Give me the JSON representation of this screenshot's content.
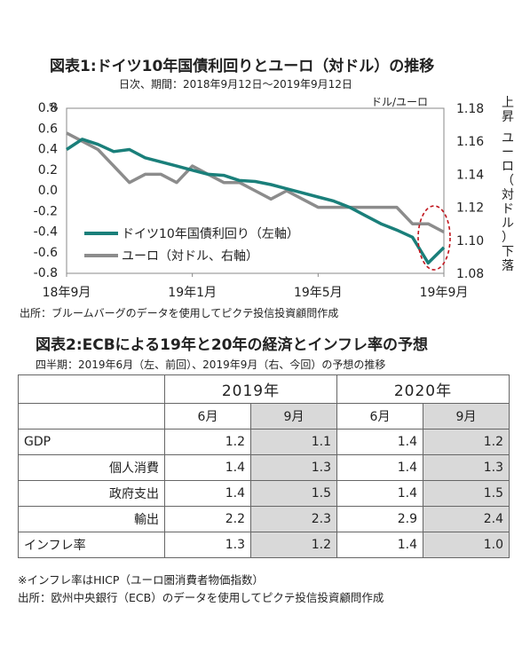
{
  "figure1": {
    "title": "図表1:ドイツ10年国債利回りとユーロ（対ドル）の推移",
    "subtitle": "日次、期間：2018年9月12日～2019年9月12日",
    "unit_left": "%",
    "unit_right": "ドル/ユーロ",
    "side_label": "上昇 ユーロ（対ドル）下落",
    "source": "出所：ブルームバーグのデータを使用してピクテ投信投資顧問作成",
    "colors": {
      "bund": "#1a7f7a",
      "eur": "#8c8c8c",
      "highlight": "#c0141c"
    }
  },
  "chart_data": {
    "type": "line",
    "title": "図表1:ドイツ10年国債利回りとユーロ（対ドル）の推移",
    "xlabel": "",
    "ylabel": "%",
    "y2label": "ドル/ユーロ",
    "x_tick_labels": [
      "18年9月",
      "19年1月",
      "19年5月",
      "19年9月"
    ],
    "x_tick_positions": [
      0,
      4,
      8,
      12
    ],
    "ylim": [
      -0.8,
      0.8
    ],
    "y_ticks": [
      "0.8",
      "0.6",
      "0.4",
      "0.2",
      "0.0",
      "-0.2",
      "-0.4",
      "-0.6",
      "-0.8"
    ],
    "y2lim": [
      1.08,
      1.18
    ],
    "y2_ticks": [
      "1.18",
      "1.16",
      "1.14",
      "1.12",
      "1.10",
      "1.08"
    ],
    "legend_position": "lower-left",
    "series": [
      {
        "name": "ドイツ10年国債利回り（左軸）",
        "axis": "left",
        "x": [
          0,
          0.5,
          1,
          1.5,
          2,
          2.5,
          3,
          3.5,
          4,
          4.5,
          5,
          5.5,
          6,
          6.5,
          7,
          7.5,
          8,
          8.5,
          9,
          9.5,
          10,
          10.5,
          11,
          11.5,
          12
        ],
        "values": [
          0.4,
          0.5,
          0.45,
          0.38,
          0.4,
          0.32,
          0.28,
          0.24,
          0.2,
          0.16,
          0.15,
          0.1,
          0.09,
          0.06,
          0.02,
          -0.02,
          -0.06,
          -0.1,
          -0.16,
          -0.24,
          -0.32,
          -0.38,
          -0.45,
          -0.7,
          -0.55
        ]
      },
      {
        "name": "ユーロ（対ドル、右軸）",
        "axis": "right",
        "x": [
          0,
          0.5,
          1,
          1.5,
          2,
          2.5,
          3,
          3.5,
          4,
          4.5,
          5,
          5.5,
          6,
          6.5,
          7,
          7.5,
          8,
          8.5,
          9,
          9.5,
          10,
          10.5,
          11,
          11.5,
          12
        ],
        "values": [
          1.165,
          1.16,
          1.155,
          1.145,
          1.135,
          1.14,
          1.14,
          1.135,
          1.145,
          1.14,
          1.135,
          1.135,
          1.13,
          1.125,
          1.13,
          1.125,
          1.12,
          1.12,
          1.12,
          1.12,
          1.12,
          1.12,
          1.11,
          1.11,
          1.105
        ]
      }
    ]
  },
  "figure2": {
    "title": "図表2:ECBによる19年と20年の経済とインフレ率の予想",
    "subtitle": "四半期：2019年6月（左、前回）、2019年9月（右、今回）の予想の推移",
    "years": [
      "2019年",
      "2020年"
    ],
    "months": [
      "6月",
      "9月",
      "6月",
      "9月"
    ],
    "rows": [
      {
        "label": "GDP",
        "values": [
          "1.2",
          "1.1",
          "1.4",
          "1.2"
        ]
      },
      {
        "label": "個人消費",
        "values": [
          "1.4",
          "1.3",
          "1.4",
          "1.3"
        ]
      },
      {
        "label": "政府支出",
        "values": [
          "1.4",
          "1.5",
          "1.4",
          "1.5"
        ]
      },
      {
        "label": "輸出",
        "values": [
          "2.2",
          "2.3",
          "2.9",
          "2.4"
        ]
      },
      {
        "label": "インフレ率",
        "values": [
          "1.3",
          "1.2",
          "1.4",
          "1.0"
        ]
      }
    ],
    "note": "※インフレ率はHICP（ユーロ圏消費者物価指数）",
    "source": "出所：欧州中央銀行（ECB）のデータを使用してピクテ投信投資顧問作成"
  }
}
